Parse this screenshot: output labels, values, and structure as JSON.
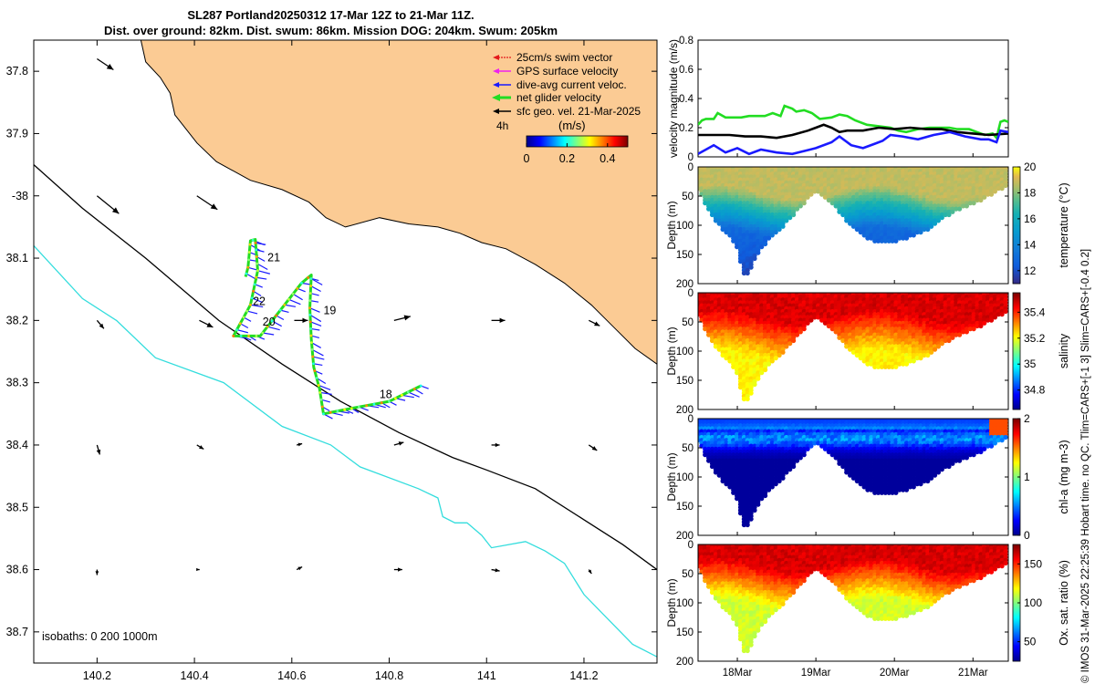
{
  "figure": {
    "title_line1": "SL287 Portland20250312 17-Mar 12Z to 21-Mar 11Z.",
    "title_line2": "Dist. over ground: 82km. Dist. swum: 86km. Mission DOG: 204km. Swum: 205km",
    "side_caption": "© IMOS 31-Mar-2025 22:25:39 Hobart time. no QC. Tlim=CARS+[-1 3] Slim=CARS+[-0.4 0.2]"
  },
  "colors": {
    "land": "#fbcb94",
    "swim_vector": "#e41a1c",
    "gps_velocity": "#ee22ee",
    "dive_current": "#1a1aff",
    "net_glider": "#22dd22",
    "geo_velocity": "#000000",
    "isobath_200": "#000000",
    "isobath_1000": "#33dddd"
  },
  "chart_data": [
    {
      "type": "map",
      "name": "glider-track-map",
      "xlim": [
        140.07,
        141.35
      ],
      "ylim": [
        37.75,
        38.75
      ],
      "y_reversed": true,
      "x_ticks": [
        140.2,
        140.4,
        140.6,
        140.8,
        141,
        141.2
      ],
      "x_tick_labels": [
        "140.2",
        "140.4",
        "140.6",
        "140.8",
        "141",
        "141.2"
      ],
      "y_ticks": [
        37.8,
        37.9,
        38.0,
        38.1,
        38.2,
        38.3,
        38.4,
        38.5,
        38.6,
        38.7
      ],
      "y_tick_labels": [
        "37.8",
        "37.9",
        "-38",
        "38.1",
        "38.2",
        "38.3",
        "38.4",
        "38.5",
        "38.6",
        "38.7"
      ],
      "legend": [
        {
          "label": "25cm/s swim vector",
          "color_key": "swim_vector"
        },
        {
          "label": "GPS surface velocity",
          "color_key": "gps_velocity"
        },
        {
          "label": "dive-avg current veloc.",
          "color_key": "dive_current"
        },
        {
          "label": "net glider velocity",
          "color_key": "net_glider"
        },
        {
          "label": "sfc geo. vel. 21-Mar-2025",
          "color_key": "geo_velocity"
        }
      ],
      "colorbar": {
        "label": "(m/s)",
        "prefix": "4h",
        "range": [
          0,
          0.5
        ],
        "tick_labels": [
          "0",
          "0.2",
          "0.4"
        ]
      },
      "isobath_label": "isobaths: 0   200  1000m",
      "day_labels": [
        {
          "text": "21",
          "lon": 140.55,
          "lat": 38.105
        },
        {
          "text": "22",
          "lon": 140.52,
          "lat": 38.175
        },
        {
          "text": "20",
          "lon": 140.54,
          "lat": 38.208
        },
        {
          "text": "19",
          "lon": 140.665,
          "lat": 38.19
        },
        {
          "text": "18",
          "lon": 140.78,
          "lat": 38.325
        }
      ],
      "coast": [
        [
          140.29,
          37.75
        ],
        [
          140.3,
          37.785
        ],
        [
          140.33,
          37.81
        ],
        [
          140.35,
          37.835
        ],
        [
          140.36,
          37.87
        ],
        [
          140.405,
          37.915
        ],
        [
          140.445,
          37.945
        ],
        [
          140.515,
          37.975
        ],
        [
          140.58,
          37.99
        ],
        [
          140.635,
          38.01
        ],
        [
          140.67,
          38.035
        ],
        [
          140.71,
          38.05
        ],
        [
          140.78,
          38.035
        ],
        [
          140.84,
          38.045
        ],
        [
          140.9,
          38.05
        ],
        [
          140.945,
          38.06
        ],
        [
          140.99,
          38.075
        ],
        [
          141.04,
          38.085
        ],
        [
          141.1,
          38.11
        ],
        [
          141.16,
          38.14
        ],
        [
          141.215,
          38.175
        ],
        [
          141.26,
          38.21
        ],
        [
          141.305,
          38.245
        ],
        [
          141.35,
          38.27
        ]
      ],
      "isobath_200": [
        [
          140.07,
          37.95
        ],
        [
          140.17,
          38.02
        ],
        [
          140.3,
          38.1
        ],
        [
          140.45,
          38.2
        ],
        [
          140.58,
          38.27
        ],
        [
          140.7,
          38.33
        ],
        [
          140.82,
          38.38
        ],
        [
          140.93,
          38.42
        ],
        [
          141.0,
          38.44
        ],
        [
          141.1,
          38.47
        ],
        [
          141.2,
          38.52
        ],
        [
          141.28,
          38.56
        ],
        [
          141.35,
          38.6
        ]
      ],
      "isobath_1000": [
        [
          140.07,
          38.08
        ],
        [
          140.17,
          38.165
        ],
        [
          140.24,
          38.2
        ],
        [
          140.32,
          38.26
        ],
        [
          140.46,
          38.3
        ],
        [
          140.58,
          38.37
        ],
        [
          140.68,
          38.4
        ],
        [
          140.74,
          38.435
        ],
        [
          140.86,
          38.47
        ],
        [
          140.9,
          38.485
        ],
        [
          140.91,
          38.515
        ],
        [
          140.935,
          38.525
        ],
        [
          140.96,
          38.525
        ],
        [
          140.99,
          38.545
        ],
        [
          141.01,
          38.565
        ],
        [
          141.08,
          38.555
        ],
        [
          141.12,
          38.57
        ],
        [
          141.16,
          38.59
        ],
        [
          141.2,
          38.64
        ],
        [
          141.25,
          38.68
        ],
        [
          141.3,
          38.72
        ],
        [
          141.35,
          38.74
        ]
      ],
      "track": [
        [
          140.865,
          38.305
        ],
        [
          140.8,
          38.33
        ],
        [
          140.73,
          38.34
        ],
        [
          140.665,
          38.35
        ],
        [
          140.657,
          38.31
        ],
        [
          140.645,
          38.275
        ],
        [
          140.64,
          38.23
        ],
        [
          140.637,
          38.18
        ],
        [
          140.64,
          38.127
        ],
        [
          140.62,
          38.14
        ],
        [
          140.585,
          38.175
        ],
        [
          140.555,
          38.205
        ],
        [
          140.535,
          38.225
        ],
        [
          140.48,
          38.225
        ],
        [
          140.515,
          38.175
        ],
        [
          140.53,
          38.12
        ],
        [
          140.525,
          38.07
        ],
        [
          140.515,
          38.072
        ],
        [
          140.51,
          38.115
        ],
        [
          140.505,
          38.13
        ]
      ],
      "current_arrows": [
        {
          "lon": 140.2,
          "lat": 37.78,
          "u": 0.12,
          "v": -0.08
        },
        {
          "lon": 140.2,
          "lat": 38.0,
          "u": 0.16,
          "v": -0.13
        },
        {
          "lon": 140.405,
          "lat": 38.0,
          "u": 0.15,
          "v": -0.1
        },
        {
          "lon": 140.2,
          "lat": 38.2,
          "u": 0.05,
          "v": -0.06
        },
        {
          "lon": 140.41,
          "lat": 38.2,
          "u": 0.1,
          "v": -0.05
        },
        {
          "lon": 140.605,
          "lat": 38.2,
          "u": 0.1,
          "v": 0.0
        },
        {
          "lon": 140.81,
          "lat": 38.2,
          "u": 0.12,
          "v": 0.03
        },
        {
          "lon": 141.01,
          "lat": 38.2,
          "u": 0.1,
          "v": 0.0
        },
        {
          "lon": 141.21,
          "lat": 38.2,
          "u": 0.08,
          "v": -0.04
        },
        {
          "lon": 140.2,
          "lat": 38.4,
          "u": 0.02,
          "v": -0.07
        },
        {
          "lon": 140.405,
          "lat": 38.4,
          "u": 0.05,
          "v": -0.03
        },
        {
          "lon": 140.61,
          "lat": 38.4,
          "u": 0.04,
          "v": 0.01
        },
        {
          "lon": 140.81,
          "lat": 38.4,
          "u": 0.07,
          "v": 0.02
        },
        {
          "lon": 141.01,
          "lat": 38.4,
          "u": 0.06,
          "v": 0.0
        },
        {
          "lon": 141.21,
          "lat": 38.4,
          "u": 0.06,
          "v": -0.04
        },
        {
          "lon": 140.2,
          "lat": 38.6,
          "u": 0.0,
          "v": -0.04
        },
        {
          "lon": 140.405,
          "lat": 38.6,
          "u": 0.02,
          "v": 0.0
        },
        {
          "lon": 140.61,
          "lat": 38.6,
          "u": 0.04,
          "v": 0.02
        },
        {
          "lon": 140.81,
          "lat": 38.6,
          "u": 0.06,
          "v": 0.0
        },
        {
          "lon": 141.01,
          "lat": 38.6,
          "u": 0.06,
          "v": -0.01
        },
        {
          "lon": 141.21,
          "lat": 38.6,
          "u": 0.02,
          "v": -0.03
        }
      ]
    },
    {
      "type": "line",
      "name": "velocity-magnitude",
      "ylabel": "velocity magnitude (m/s)",
      "ylim": [
        0,
        0.8
      ],
      "y_ticks": [
        0,
        0.2,
        0.4,
        0.6,
        0.8
      ],
      "y_tick_labels": [
        "0",
        "0.2",
        "0.4",
        "0.6",
        "0.8"
      ],
      "xlim": [
        17.5,
        21.45
      ],
      "series": [
        {
          "name": "net glider velocity",
          "color_key": "net_glider",
          "x": [
            17.5,
            17.55,
            17.6,
            17.7,
            17.75,
            17.85,
            17.95,
            18.05,
            18.15,
            18.25,
            18.35,
            18.45,
            18.55,
            18.6,
            18.7,
            18.75,
            18.85,
            18.95,
            19.05,
            19.2,
            19.3,
            19.4,
            19.5,
            19.65,
            19.8,
            19.95,
            20.05,
            20.15,
            20.3,
            20.45,
            20.6,
            20.7,
            20.8,
            20.95,
            21.05,
            21.15,
            21.25,
            21.3,
            21.35,
            21.4,
            21.45
          ],
          "y": [
            0.22,
            0.25,
            0.26,
            0.26,
            0.3,
            0.27,
            0.27,
            0.27,
            0.28,
            0.28,
            0.28,
            0.3,
            0.28,
            0.35,
            0.33,
            0.31,
            0.32,
            0.3,
            0.26,
            0.27,
            0.29,
            0.28,
            0.25,
            0.22,
            0.21,
            0.2,
            0.18,
            0.17,
            0.19,
            0.2,
            0.2,
            0.2,
            0.19,
            0.19,
            0.17,
            0.15,
            0.16,
            0.13,
            0.24,
            0.25,
            0.24
          ]
        },
        {
          "name": "sfc geo. vel.",
          "color_key": "geo_velocity",
          "x": [
            17.5,
            17.7,
            17.9,
            18.1,
            18.3,
            18.5,
            18.7,
            18.9,
            19.0,
            19.1,
            19.2,
            19.3,
            19.4,
            19.6,
            19.8,
            20.0,
            20.2,
            20.4,
            20.6,
            20.8,
            21.0,
            21.2,
            21.45
          ],
          "y": [
            0.15,
            0.15,
            0.15,
            0.14,
            0.14,
            0.13,
            0.15,
            0.18,
            0.2,
            0.22,
            0.2,
            0.17,
            0.18,
            0.18,
            0.2,
            0.19,
            0.2,
            0.19,
            0.19,
            0.17,
            0.16,
            0.15,
            0.16
          ]
        },
        {
          "name": "dive-avg current veloc.",
          "color_key": "dive_current",
          "x": [
            17.5,
            17.6,
            17.7,
            17.85,
            18.0,
            18.15,
            18.3,
            18.5,
            18.7,
            18.85,
            19.0,
            19.2,
            19.3,
            19.45,
            19.6,
            19.75,
            19.85,
            19.95,
            20.1,
            20.3,
            20.5,
            20.7,
            20.9,
            21.1,
            21.2,
            21.3,
            21.35,
            21.45
          ],
          "y": [
            0.02,
            0.05,
            0.08,
            0.03,
            0.06,
            0.02,
            0.05,
            0.03,
            0.02,
            0.04,
            0.06,
            0.1,
            0.14,
            0.08,
            0.06,
            0.09,
            0.11,
            0.15,
            0.14,
            0.12,
            0.15,
            0.17,
            0.14,
            0.12,
            0.12,
            0.1,
            0.18,
            0.17
          ]
        }
      ]
    },
    {
      "type": "heatmap",
      "name": "temperature-section",
      "ylabel": "Depth (m)",
      "ylim": [
        0,
        200
      ],
      "y_ticks": [
        0,
        50,
        100,
        150,
        200
      ],
      "y_tick_labels": [
        "0",
        "50",
        "100",
        "150",
        "200"
      ],
      "colorbar_label": "temperature (°C)",
      "colorbar_range": [
        11,
        20
      ],
      "colorbar_ticks": [
        12,
        14,
        16,
        18,
        20
      ],
      "colorbar_tick_labels": [
        "12",
        "14",
        "16",
        "18",
        "20"
      ],
      "colormap": "parula",
      "surface_value": 18.8,
      "deep_value": 13.2,
      "mixed_layer_depth_m": 45
    },
    {
      "type": "heatmap",
      "name": "salinity-section",
      "ylabel": "Depth (m)",
      "ylim": [
        0,
        200
      ],
      "y_ticks": [
        0,
        50,
        100,
        150,
        200
      ],
      "y_tick_labels": [
        "0",
        "50",
        "100",
        "150",
        "200"
      ],
      "colorbar_label": "salinity",
      "colorbar_range": [
        34.65,
        35.55
      ],
      "colorbar_ticks": [
        34.8,
        35.0,
        35.2,
        35.4
      ],
      "colorbar_tick_labels": [
        "34.8",
        "35",
        "35.2",
        "35.4"
      ],
      "colormap": "jet",
      "surface_value": 35.47,
      "deep_value": 35.22,
      "mixed_layer_depth_m": 40
    },
    {
      "type": "heatmap",
      "name": "chlorophyll-section",
      "ylabel": "Depth (m)",
      "ylim": [
        0,
        200
      ],
      "y_ticks": [
        0,
        50,
        100,
        150,
        200
      ],
      "y_tick_labels": [
        "0",
        "50",
        "100",
        "150",
        "200"
      ],
      "colorbar_label": "chl-a (mg m-3)",
      "colorbar_range": [
        0,
        2
      ],
      "colorbar_ticks": [
        0,
        1,
        2
      ],
      "colorbar_tick_labels": [
        "0",
        "1",
        "2"
      ],
      "colormap": "jet",
      "surface_value": 0.45,
      "deep_value": 0.05,
      "mixed_layer_depth_m": 45
    },
    {
      "type": "heatmap",
      "name": "oxygen-section",
      "ylabel": "Depth (m)",
      "ylim": [
        0,
        200
      ],
      "y_ticks": [
        0,
        50,
        100,
        150,
        200
      ],
      "y_tick_labels": [
        "0",
        "50",
        "100",
        "150",
        "200"
      ],
      "xlim": [
        17.5,
        21.45
      ],
      "x_ticks": [
        18,
        19,
        20,
        21
      ],
      "x_tick_labels": [
        "18Mar",
        "19Mar",
        "20Mar",
        "21Mar"
      ],
      "colorbar_label": "Ox. sat. ratio (%)",
      "colorbar_range": [
        25,
        175
      ],
      "colorbar_ticks": [
        50,
        100,
        150
      ],
      "colorbar_tick_labels": [
        "50",
        "100",
        "150"
      ],
      "colormap": "jet",
      "surface_value": 162,
      "deep_value": 112,
      "mixed_layer_depth_m": 35
    }
  ],
  "section_profile": {
    "x": [
      17.5,
      17.7,
      17.9,
      18.0,
      18.1,
      18.3,
      18.6,
      18.9,
      19.0,
      19.15,
      19.4,
      19.6,
      19.8,
      20.0,
      20.2,
      20.4,
      20.6,
      20.8,
      21.0,
      21.2,
      21.35,
      21.45
    ],
    "depth": [
      40,
      90,
      120,
      140,
      195,
      140,
      100,
      55,
      40,
      55,
      95,
      120,
      130,
      130,
      120,
      110,
      90,
      75,
      65,
      50,
      40,
      30
    ]
  }
}
